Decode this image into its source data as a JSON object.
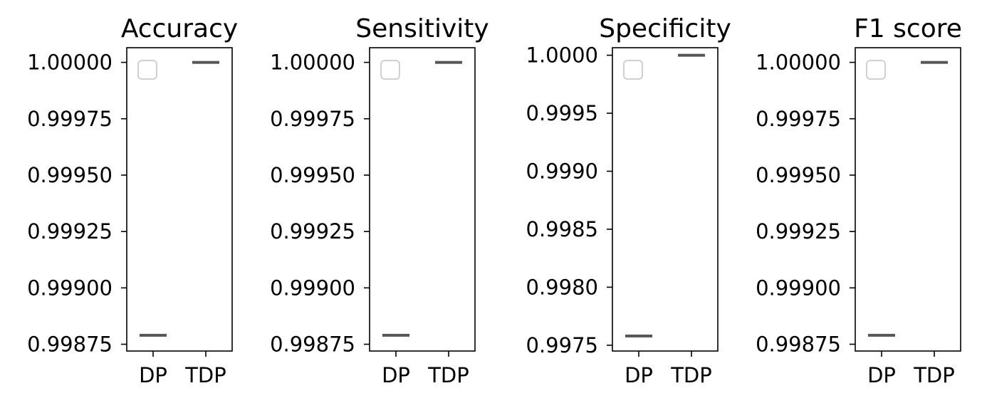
{
  "chart_data": [
    {
      "type": "box",
      "title": "Accuracy",
      "categories": [
        "DP",
        "TDP"
      ],
      "values": [
        0.99879,
        1.0
      ],
      "ylim": [
        0.99872,
        1.000065
      ],
      "yticks": [
        0.99875,
        0.999,
        0.99925,
        0.9995,
        0.99975,
        1.0
      ],
      "ytick_labels": [
        "0.99875",
        "0.99900",
        "0.99925",
        "0.99950",
        "0.99975",
        "1.00000"
      ],
      "legend": "upper-left (empty)",
      "grid": false
    },
    {
      "type": "box",
      "title": "Sensitivity",
      "categories": [
        "DP",
        "TDP"
      ],
      "values": [
        0.99879,
        1.0
      ],
      "ylim": [
        0.99872,
        1.000065
      ],
      "yticks": [
        0.99875,
        0.999,
        0.99925,
        0.9995,
        0.99975,
        1.0
      ],
      "ytick_labels": [
        "0.99875",
        "0.99900",
        "0.99925",
        "0.99950",
        "0.99975",
        "1.00000"
      ],
      "legend": "upper-left (empty)",
      "grid": false
    },
    {
      "type": "box",
      "title": "Specificity",
      "categories": [
        "DP",
        "TDP"
      ],
      "values": [
        0.99758,
        1.0
      ],
      "ylim": [
        0.99745,
        1.000065
      ],
      "yticks": [
        0.9975,
        0.998,
        0.9985,
        0.999,
        0.9995,
        1.0
      ],
      "ytick_labels": [
        "0.9975",
        "0.9980",
        "0.9985",
        "0.9990",
        "0.9995",
        "1.0000"
      ],
      "legend": "upper-left (empty)",
      "grid": false
    },
    {
      "type": "box",
      "title": "F1 score",
      "categories": [
        "DP",
        "TDP"
      ],
      "values": [
        0.99879,
        1.0
      ],
      "ylim": [
        0.99872,
        1.000065
      ],
      "yticks": [
        0.99875,
        0.999,
        0.99925,
        0.9995,
        0.99975,
        1.0
      ],
      "ytick_labels": [
        "0.99875",
        "0.99900",
        "0.99925",
        "0.99950",
        "0.99975",
        "1.00000"
      ],
      "legend": "upper-left (empty)",
      "grid": false
    }
  ],
  "colors": {
    "line": "#555555",
    "axis": "#000000",
    "legend_box": "#d0d0d0"
  }
}
